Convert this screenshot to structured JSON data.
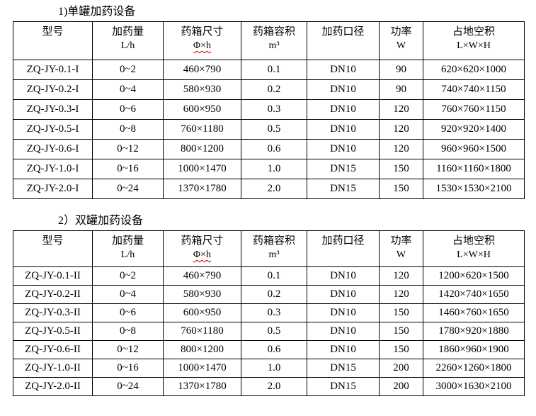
{
  "document": {
    "spellcheck_color": "#cc0000",
    "sections": [
      {
        "title": "1)单罐加药设备",
        "header": [
          {
            "line1": "型号",
            "line2": ""
          },
          {
            "line1": "加药量",
            "line2": "L/h"
          },
          {
            "line1": "药箱尺寸",
            "line2": "Φ×h",
            "spellcheck_underline": true
          },
          {
            "line1": "药箱容积",
            "line2": "m³"
          },
          {
            "line1": "加药口径",
            "line2": ""
          },
          {
            "line1": "功率",
            "line2": "W"
          },
          {
            "line1": "占地空积",
            "line2": "L×W×H"
          }
        ],
        "rows": [
          [
            "ZQ-JY-0.1-I",
            "0~2",
            "460×790",
            "0.1",
            "DN10",
            "90",
            "620×620×1000"
          ],
          [
            "ZQ-JY-0.2-I",
            "0~4",
            "580×930",
            "0.2",
            "DN10",
            "90",
            "740×740×1150"
          ],
          [
            "ZQ-JY-0.3-I",
            "0~6",
            "600×950",
            "0.3",
            "DN10",
            "120",
            "760×760×1150"
          ],
          [
            "ZQ-JY-0.5-I",
            "0~8",
            "760×1180",
            "0.5",
            "DN10",
            "120",
            "920×920×1400"
          ],
          [
            "ZQ-JY-0.6-I",
            "0~12",
            "800×1200",
            "0.6",
            "DN10",
            "120",
            "960×960×1500"
          ],
          [
            "ZQ-JY-1.0-I",
            "0~16",
            "1000×1470",
            "1.0",
            "DN15",
            "150",
            "1160×1160×1800"
          ],
          [
            "ZQ-JY-2.0-I",
            "0~24",
            "1370×1780",
            "2.0",
            "DN15",
            "150",
            "1530×1530×2100"
          ]
        ]
      },
      {
        "title": "2）双罐加药设备",
        "header": [
          {
            "line1": "型号",
            "line2": ""
          },
          {
            "line1": "加药量",
            "line2": "L/h"
          },
          {
            "line1": "药箱尺寸",
            "line2": "Φ×h",
            "spellcheck_underline": true
          },
          {
            "line1": "药箱容积",
            "line2": "m³"
          },
          {
            "line1": "加药口径",
            "line2": ""
          },
          {
            "line1": "功率",
            "line2": "W"
          },
          {
            "line1": "占地空积",
            "line2": "L×W×H"
          }
        ],
        "rows": [
          [
            "ZQ-JY-0.1-II",
            "0~2",
            "460×790",
            "0.1",
            "DN10",
            "120",
            "1200×620×1500"
          ],
          [
            "ZQ-JY-0.2-II",
            "0~4",
            "580×930",
            "0.2",
            "DN10",
            "120",
            "1420×740×1650"
          ],
          [
            "ZQ-JY-0.3-II",
            "0~6",
            "600×950",
            "0.3",
            "DN10",
            "150",
            "1460×760×1650"
          ],
          [
            "ZQ-JY-0.5-II",
            "0~8",
            "760×1180",
            "0.5",
            "DN10",
            "150",
            "1780×920×1880"
          ],
          [
            "ZQ-JY-0.6-II",
            "0~12",
            "800×1200",
            "0.6",
            "DN10",
            "150",
            "1860×960×1900"
          ],
          [
            "ZQ-JY-1.0-II",
            "0~16",
            "1000×1470",
            "1.0",
            "DN15",
            "200",
            "2260×1260×1800"
          ],
          [
            "ZQ-JY-2.0-II",
            "0~24",
            "1370×1780",
            "2.0",
            "DN15",
            "200",
            "3000×1630×2100"
          ]
        ]
      }
    ]
  }
}
